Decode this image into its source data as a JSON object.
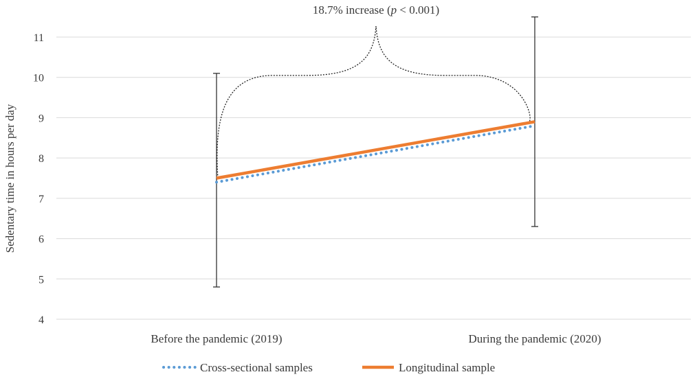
{
  "chart_data": {
    "type": "line",
    "title": "",
    "annotation": {
      "prefix": "18.7% increase (",
      "italic": "p",
      "suffix": " < 0.001)"
    },
    "ylabel": "Sedentary time in hours per day",
    "xlabel": "",
    "ylim": [
      4,
      11
    ],
    "yticks": [
      "4",
      "5",
      "6",
      "7",
      "8",
      "9",
      "10",
      "11"
    ],
    "categories": [
      "Before the pandemic (2019)",
      "During the pandemic (2020)"
    ],
    "grid": true,
    "legend_position": "bottom",
    "series": [
      {
        "name": "Cross-sectional samples",
        "values": [
          7.4,
          8.8
        ],
        "color": "#5B9BD5",
        "style": "dotted"
      },
      {
        "name": "Longitudinal sample",
        "values": [
          7.5,
          8.9
        ],
        "color": "#ED7D31",
        "style": "solid"
      }
    ],
    "error_bars": [
      {
        "category": "Before the pandemic (2019)",
        "low": 4.8,
        "high": 10.1
      },
      {
        "category": "During the pandemic (2020)",
        "low": 6.3,
        "high": 11.5
      }
    ]
  }
}
